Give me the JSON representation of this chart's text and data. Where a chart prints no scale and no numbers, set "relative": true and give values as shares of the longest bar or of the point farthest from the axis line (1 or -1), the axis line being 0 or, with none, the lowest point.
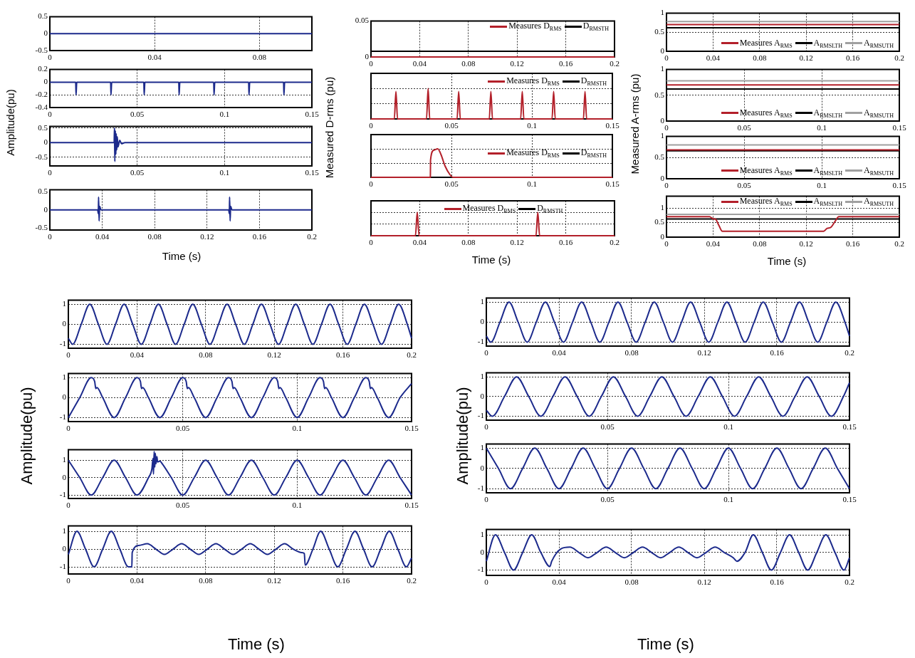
{
  "chart_data": [
    {
      "type": "line",
      "ylabel": "Amplitude(pu)",
      "xlim": [
        0,
        0.1
      ],
      "xticks": [
        0,
        0.04,
        0.08
      ],
      "ylim": [
        -0.5,
        0.5
      ],
      "yticks": [
        -0.5,
        0,
        0.5
      ],
      "grid": "x",
      "series": [
        {
          "color": "#1c2a8c",
          "x": [
            0,
            0.1
          ],
          "values": [
            0,
            0
          ]
        }
      ]
    },
    {
      "type": "line",
      "xlim": [
        0,
        0.15
      ],
      "xticks": [
        0,
        0.05,
        0.1,
        0.15
      ],
      "ylim": [
        -0.4,
        0.2
      ],
      "yticks": [
        -0.4,
        -0.2,
        0,
        0.2
      ],
      "grid": true,
      "series": [
        {
          "color": "#1c2a8c",
          "x": [
            0,
            0.0148,
            0.015,
            0.0154,
            0.0348,
            0.035,
            0.0354,
            0.0538,
            0.054,
            0.0544,
            0.0738,
            0.074,
            0.0744,
            0.0938,
            0.094,
            0.0944,
            0.1138,
            0.114,
            0.1144,
            0.1338,
            0.134,
            0.1344,
            0.15
          ],
          "values": [
            0,
            0,
            -0.2,
            0,
            0,
            -0.2,
            0,
            0,
            -0.2,
            0,
            0,
            -0.2,
            0,
            0,
            -0.2,
            0,
            0,
            -0.2,
            0,
            0,
            -0.2,
            0,
            0
          ]
        }
      ]
    },
    {
      "type": "line",
      "xlim": [
        0,
        0.15
      ],
      "xticks": [
        0,
        0.05,
        0.1,
        0.15
      ],
      "ylim": [
        -0.8,
        0.55
      ],
      "yticks": [
        -0.5,
        0,
        0.5
      ],
      "grid": true,
      "series": [
        {
          "color": "#1c2a8c",
          "x": [
            0,
            0.0368,
            0.037,
            0.0372,
            0.0375,
            0.0378,
            0.038,
            0.0383,
            0.0386,
            0.039,
            0.04,
            0.041,
            0.043,
            0.15
          ],
          "values": [
            0,
            0,
            0.5,
            -0.65,
            0.4,
            -0.4,
            0.3,
            -0.25,
            0.2,
            -0.15,
            0.08,
            -0.04,
            0,
            0
          ]
        }
      ]
    },
    {
      "type": "line",
      "xlabel": "Time (s)",
      "xlim": [
        0,
        0.2
      ],
      "xticks": [
        0,
        0.04,
        0.08,
        0.12,
        0.16,
        0.2
      ],
      "ylim": [
        -0.55,
        0.55
      ],
      "yticks": [
        -0.5,
        0,
        0.5
      ],
      "grid": "x",
      "series": [
        {
          "color": "#1c2a8c",
          "x": [
            0,
            0.0365,
            0.037,
            0.0372,
            0.0376,
            0.038,
            0.039,
            0.1365,
            0.137,
            0.1372,
            0.1376,
            0.138,
            0.139,
            0.2
          ],
          "values": [
            0,
            0,
            -0.1,
            0.35,
            -0.3,
            0.1,
            0,
            0,
            -0.1,
            0.35,
            -0.3,
            0.1,
            0,
            0
          ]
        }
      ]
    },
    {
      "type": "line",
      "ylabel": "Measured D-rms (pu)",
      "xlim": [
        0,
        0.2
      ],
      "xticks": [
        0,
        0.04,
        0.08,
        0.12,
        0.16,
        0.2
      ],
      "ylim": [
        0,
        0.05
      ],
      "yticks": [
        0,
        0.05
      ],
      "grid": "x",
      "legend": "top right",
      "series": [
        {
          "name": "Measures D$_{RMS}$",
          "color": "#b3202a",
          "x": [
            0,
            0.2
          ],
          "values": [
            0,
            0
          ]
        },
        {
          "name": "D$_{RMSTH}$",
          "color": "#000000",
          "x": [
            0,
            0.2
          ],
          "values": [
            0.008,
            0.008
          ]
        }
      ]
    },
    {
      "type": "line",
      "relative": true,
      "tick_labels": "x",
      "xlim": [
        0,
        0.15
      ],
      "xticks": [
        0,
        0.05,
        0.1,
        0.15
      ],
      "grid": true,
      "legend": "top right",
      "series": [
        {
          "name": "Measures D$_{RMS}$",
          "color": "#b3202a",
          "x": [
            0,
            0.0145,
            0.0155,
            0.0165,
            0.0345,
            0.0355,
            0.0365,
            0.0535,
            0.0545,
            0.0555,
            0.0735,
            0.0745,
            0.0755,
            0.093,
            0.094,
            0.095,
            0.1125,
            0.1135,
            0.1145,
            0.132,
            0.133,
            0.134,
            0.15
          ],
          "values": [
            0,
            0,
            0.9,
            0,
            0,
            1,
            0,
            0,
            0.9,
            0,
            0,
            0.9,
            0,
            0,
            0.9,
            0,
            0,
            0.9,
            0,
            0,
            0.9,
            0,
            0
          ]
        },
        {
          "name": "D$_{RMSTH}$",
          "color": "#000000",
          "x": [
            0,
            0.15
          ],
          "values": [
            0,
            0
          ]
        }
      ]
    },
    {
      "type": "line",
      "relative": true,
      "tick_labels": "x",
      "xlim": [
        0,
        0.15
      ],
      "xticks": [
        0,
        0.05,
        0.1,
        0.15
      ],
      "grid": true,
      "legend": "right",
      "series": [
        {
          "name": "Measures D$_{RMS}$",
          "color": "#b3202a",
          "x": [
            0,
            0.0369,
            0.037,
            0.039,
            0.0415,
            0.0435,
            0.046,
            0.049,
            0.051,
            0.15
          ],
          "values": [
            0,
            0,
            0.6,
            0.95,
            1,
            0.8,
            0.4,
            0.1,
            0,
            0
          ]
        },
        {
          "name": "D$_{RMSTH}$",
          "color": "#000000",
          "x": [
            0,
            0.15
          ],
          "values": [
            0,
            0
          ]
        }
      ]
    },
    {
      "type": "line",
      "relative": true,
      "tick_labels": "x",
      "xlabel": "Time (s)",
      "xlim": [
        0,
        0.2
      ],
      "xticks": [
        0,
        0.04,
        0.08,
        0.12,
        0.16,
        0.2
      ],
      "grid": true,
      "legend": "top",
      "series": [
        {
          "name": "Measures D$_{RMS}$",
          "color": "#b3202a",
          "x": [
            0,
            0.0365,
            0.038,
            0.0395,
            0.1355,
            0.137,
            0.1385,
            0.2
          ],
          "values": [
            0,
            0,
            1,
            0,
            0,
            1,
            0,
            0
          ]
        },
        {
          "name": "D$_{RMSTH}$",
          "color": "#000000",
          "x": [
            0,
            0.2
          ],
          "values": [
            0,
            0
          ]
        }
      ]
    },
    {
      "type": "line",
      "ylabel": "Measured A-rms (pu)",
      "xlim": [
        0,
        0.2
      ],
      "xticks": [
        0,
        0.04,
        0.08,
        0.12,
        0.16,
        0.2
      ],
      "ylim": [
        0,
        1
      ],
      "yticks": [
        0,
        0.5,
        1
      ],
      "grid": true,
      "legend": "bottom right",
      "series": [
        {
          "name": "Measures A$_{RMS}$",
          "color": "#b3202a",
          "x": [
            0,
            0.2
          ],
          "values": [
            0.7,
            0.7
          ]
        },
        {
          "name": "A$_{RMSLTH}$",
          "color": "#000000",
          "x": [
            0,
            0.2
          ],
          "values": [
            0.62,
            0.62
          ]
        },
        {
          "name": "A$_{RMSUTH}$",
          "color": "#a0a0a0",
          "x": [
            0,
            0.2
          ],
          "values": [
            0.78,
            0.78
          ]
        }
      ]
    },
    {
      "type": "line",
      "xlim": [
        0,
        0.15
      ],
      "xticks": [
        0,
        0.05,
        0.1,
        0.15
      ],
      "ylim": [
        0,
        1
      ],
      "yticks": [
        0,
        0.5,
        1
      ],
      "grid": true,
      "legend": "bottom right",
      "series": [
        {
          "name": "Measures A$_{RMS}$",
          "color": "#b3202a",
          "x": [
            0,
            0.15
          ],
          "values": [
            0.7,
            0.7
          ]
        },
        {
          "name": "A$_{RMSLTH}$",
          "color": "#000000",
          "x": [
            0,
            0.15
          ],
          "values": [
            0.62,
            0.62
          ]
        },
        {
          "name": "A$_{RMSUTH}$",
          "color": "#a0a0a0",
          "x": [
            0,
            0.15
          ],
          "values": [
            0.78,
            0.78
          ]
        }
      ]
    },
    {
      "type": "line",
      "xlim": [
        0,
        0.15
      ],
      "xticks": [
        0,
        0.05,
        0.1,
        0.15
      ],
      "ylim": [
        0,
        1
      ],
      "yticks": [
        0,
        0.5,
        1
      ],
      "grid": true,
      "legend": "bottom right",
      "series": [
        {
          "name": "Measures A$_{RMS}$",
          "color": "#b3202a",
          "x": [
            0,
            0.15
          ],
          "values": [
            0.68,
            0.68
          ]
        },
        {
          "name": "A$_{RMSLTH}$",
          "color": "#000000",
          "x": [
            0,
            0.15
          ],
          "values": [
            0.66,
            0.66
          ]
        },
        {
          "name": "A$_{RMSUTH}$",
          "color": "#a0a0a0",
          "x": [
            0,
            0.15
          ],
          "values": [
            0.8,
            0.8
          ]
        }
      ]
    },
    {
      "type": "line",
      "xlabel": "Time (s)",
      "xlim": [
        0,
        0.2
      ],
      "xticks": [
        0,
        0.04,
        0.08,
        0.12,
        0.16,
        0.2
      ],
      "ylim": [
        0,
        1.4
      ],
      "yticks": [
        0,
        0.5,
        1
      ],
      "grid": true,
      "legend": "top right",
      "series": [
        {
          "name": "Measures A$_{RMS}$",
          "color": "#b3202a",
          "x": [
            0,
            0.037,
            0.04,
            0.042,
            0.045,
            0.048,
            0.135,
            0.138,
            0.141,
            0.145,
            0.148,
            0.2
          ],
          "values": [
            0.7,
            0.7,
            0.63,
            0.62,
            0.4,
            0.2,
            0.2,
            0.3,
            0.33,
            0.55,
            0.7,
            0.7
          ]
        },
        {
          "name": "A$_{RMSLTH}$",
          "color": "#000000",
          "x": [
            0,
            0.2
          ],
          "values": [
            0.62,
            0.62
          ]
        },
        {
          "name": "A$_{RMSUTH}$",
          "color": "#a0a0a0",
          "x": [
            0,
            0.2
          ],
          "values": [
            0.78,
            0.78
          ]
        }
      ]
    },
    {
      "type": "line",
      "ylabel": "Amplitude(pu)",
      "xlim": [
        0,
        0.2
      ],
      "xticks": [
        0,
        0.04,
        0.08,
        0.12,
        0.16,
        0.2
      ],
      "ylim": [
        -1.2,
        1.2
      ],
      "yticks": [
        -1,
        0,
        1
      ],
      "grid": true,
      "series": [
        {
          "color": "#1c2a8c",
          "x": [
            0,
            0.0025,
            0.0075,
            0.0125,
            0.0175,
            0.0225,
            0.0275,
            0.0325,
            0.0375,
            0.0425,
            0.0475,
            0.0525,
            0.0575,
            0.0625,
            0.0675,
            0.0725,
            0.0775,
            0.0825,
            0.0875,
            0.0925,
            0.0975,
            0.1025,
            0.1075,
            0.1125,
            0.1175,
            0.1225,
            0.1275,
            0.1325,
            0.1375,
            0.1425,
            0.1475,
            0.1525,
            0.1575,
            0.1625,
            0.1675,
            0.1725,
            0.1775,
            0.1825,
            0.1875,
            0.1925,
            0.1975,
            0.2
          ],
          "values": [
            -0.7,
            -1,
            0,
            1,
            0,
            -1,
            0,
            1,
            0,
            -1,
            0,
            1,
            0,
            -1,
            0,
            1,
            0,
            -1,
            0,
            1,
            0,
            -1,
            0,
            1,
            0,
            -1,
            0,
            1,
            0,
            -1,
            0,
            1,
            0,
            -1,
            0,
            1,
            0,
            -1,
            0,
            1,
            0,
            -0.7
          ]
        }
      ]
    },
    {
      "type": "line",
      "xlim": [
        0,
        0.15
      ],
      "xticks": [
        0,
        0.05,
        0.1,
        0.15
      ],
      "ylim": [
        -1.2,
        1.2
      ],
      "yticks": [
        -1,
        0,
        1
      ],
      "grid": true,
      "series": [
        {
          "color": "#1c2a8c",
          "x": [
            0,
            0.005,
            0.01,
            0.0115,
            0.012,
            0.0125,
            0.015,
            0.02,
            0.025,
            0.03,
            0.0315,
            0.032,
            0.0325,
            0.035,
            0.04,
            0.045,
            0.05,
            0.0515,
            0.052,
            0.0525,
            0.055,
            0.06,
            0.065,
            0.07,
            0.0715,
            0.072,
            0.0725,
            0.075,
            0.08,
            0.085,
            0.09,
            0.0915,
            0.092,
            0.0925,
            0.095,
            0.1,
            0.105,
            0.11,
            0.1115,
            0.112,
            0.1125,
            0.115,
            0.12,
            0.125,
            0.13,
            0.1315,
            0.132,
            0.1325,
            0.135,
            0.14,
            0.145,
            0.15
          ],
          "values": [
            -1,
            0,
            1,
            0.8,
            0.45,
            0.5,
            0,
            -1,
            0,
            1,
            0.8,
            0.45,
            0.5,
            0,
            -1,
            0,
            1,
            0.8,
            0.45,
            0.5,
            0,
            -1,
            0,
            1,
            0.8,
            0.45,
            0.5,
            0,
            -1,
            0,
            1,
            0.8,
            0.45,
            0.5,
            0,
            -1,
            0,
            1,
            0.8,
            0.45,
            0.5,
            0,
            -1,
            0,
            1,
            0.8,
            0.45,
            0.5,
            0,
            -1,
            0,
            0.7
          ]
        }
      ]
    },
    {
      "type": "line",
      "xlim": [
        0,
        0.15
      ],
      "xticks": [
        0,
        0.05,
        0.1,
        0.15
      ],
      "ylim": [
        -1.2,
        1.6
      ],
      "yticks": [
        -1,
        0,
        1
      ],
      "grid": true,
      "series": [
        {
          "color": "#1c2a8c",
          "x": [
            0,
            0.005,
            0.01,
            0.015,
            0.02,
            0.025,
            0.03,
            0.035,
            0.0365,
            0.037,
            0.0372,
            0.0375,
            0.0378,
            0.038,
            0.0383,
            0.0387,
            0.039,
            0.04,
            0.041,
            0.045,
            0.05,
            0.055,
            0.06,
            0.065,
            0.07,
            0.075,
            0.08,
            0.085,
            0.09,
            0.095,
            0.1,
            0.105,
            0.11,
            0.115,
            0.12,
            0.125,
            0.13,
            0.135,
            0.14,
            0.145,
            0.15
          ],
          "values": [
            1,
            0,
            -1,
            0,
            1,
            0,
            -1,
            0,
            0.5,
            1.1,
            0.2,
            1.5,
            0.6,
            1.4,
            0.8,
            1.2,
            0.9,
            0.95,
            0.8,
            0,
            -1,
            0,
            1,
            0,
            -1,
            0,
            1,
            0,
            -1,
            0,
            1,
            0,
            -1,
            0,
            1,
            0,
            -1,
            0,
            1,
            0,
            -1
          ]
        }
      ]
    },
    {
      "type": "line",
      "xlabel": "Time (s)",
      "xlim": [
        0,
        0.2
      ],
      "xticks": [
        0,
        0.04,
        0.08,
        0.12,
        0.16,
        0.2
      ],
      "ylim": [
        -1.4,
        1.3
      ],
      "yticks": [
        -1,
        0,
        1
      ],
      "grid": true,
      "series": [
        {
          "color": "#1c2a8c",
          "x": [
            0,
            0.005,
            0.01,
            0.015,
            0.02,
            0.025,
            0.03,
            0.035,
            0.037,
            0.0372,
            0.041,
            0.046,
            0.051,
            0.056,
            0.061,
            0.066,
            0.071,
            0.076,
            0.081,
            0.086,
            0.091,
            0.096,
            0.101,
            0.106,
            0.111,
            0.116,
            0.121,
            0.126,
            0.131,
            0.136,
            0.1375,
            0.138,
            0.1425,
            0.147,
            0.152,
            0.157,
            0.162,
            0.167,
            0.172,
            0.177,
            0.182,
            0.187,
            0.192,
            0.197,
            0.2
          ],
          "values": [
            -0.3,
            1,
            0,
            -1,
            0,
            1,
            0,
            -1,
            -1,
            -0.2,
            0.2,
            0.3,
            0,
            -0.3,
            0,
            0.3,
            0,
            -0.3,
            0,
            0.3,
            0,
            -0.3,
            0,
            0.3,
            0,
            -0.3,
            0,
            0.3,
            0,
            -0.2,
            -0.25,
            -0.9,
            0,
            1,
            0,
            -1,
            0,
            1,
            0,
            -1,
            0,
            1,
            0,
            -1,
            -0.5
          ]
        }
      ]
    },
    {
      "type": "line",
      "ylabel": "Amplitude(pu)",
      "xlim": [
        0,
        0.2
      ],
      "xticks": [
        0,
        0.04,
        0.08,
        0.12,
        0.16,
        0.2
      ],
      "ylim": [
        -1.2,
        1.2
      ],
      "yticks": [
        -1,
        0,
        1
      ],
      "grid": true,
      "series": [
        {
          "color": "#1c2a8c",
          "x": [
            0,
            0.0025,
            0.0075,
            0.0125,
            0.0175,
            0.0225,
            0.0275,
            0.0325,
            0.0375,
            0.0425,
            0.0475,
            0.0525,
            0.0575,
            0.0625,
            0.0675,
            0.0725,
            0.0775,
            0.0825,
            0.0875,
            0.0925,
            0.0975,
            0.1025,
            0.1075,
            0.1125,
            0.1175,
            0.1225,
            0.1275,
            0.1325,
            0.1375,
            0.1425,
            0.1475,
            0.1525,
            0.1575,
            0.1625,
            0.1675,
            0.1725,
            0.1775,
            0.1825,
            0.1875,
            0.1925,
            0.1975,
            0.2
          ],
          "values": [
            -0.7,
            -1,
            0,
            1,
            0,
            -1,
            0,
            1,
            0,
            -1,
            0,
            1,
            0,
            -1,
            0,
            1,
            0,
            -1,
            0,
            1,
            0,
            -1,
            0,
            1,
            0,
            -1,
            0,
            1,
            0,
            -1,
            0,
            1,
            0,
            -1,
            0,
            1,
            0,
            -1,
            0,
            1,
            0,
            -0.7
          ]
        }
      ]
    },
    {
      "type": "line",
      "xlim": [
        0,
        0.15
      ],
      "xticks": [
        0,
        0.05,
        0.1,
        0.15
      ],
      "ylim": [
        -1.2,
        1.2
      ],
      "yticks": [
        -1,
        0,
        1
      ],
      "grid": true,
      "series": [
        {
          "color": "#1c2a8c",
          "x": [
            0,
            0.0025,
            0.0075,
            0.0125,
            0.0175,
            0.0225,
            0.0275,
            0.0325,
            0.0375,
            0.0425,
            0.0475,
            0.0525,
            0.0575,
            0.0625,
            0.0675,
            0.0725,
            0.0775,
            0.0825,
            0.0875,
            0.0925,
            0.0975,
            0.1025,
            0.1075,
            0.1125,
            0.1175,
            0.1225,
            0.1275,
            0.1325,
            0.1375,
            0.1425,
            0.1475,
            0.15
          ],
          "values": [
            -0.7,
            -1,
            0,
            1,
            0,
            -1,
            0,
            1,
            0,
            -1,
            0,
            1,
            0,
            -1,
            0,
            1,
            0,
            -1,
            0,
            1,
            0,
            -1,
            0,
            1,
            0,
            -1,
            0,
            1,
            0,
            -1,
            0,
            0.7
          ]
        }
      ]
    },
    {
      "type": "line",
      "xlim": [
        0,
        0.15
      ],
      "xticks": [
        0,
        0.05,
        0.1,
        0.15
      ],
      "ylim": [
        -1.2,
        1.2
      ],
      "yticks": [
        -1,
        0,
        1
      ],
      "grid": true,
      "series": [
        {
          "color": "#1c2a8c",
          "x": [
            0,
            0.005,
            0.01,
            0.015,
            0.02,
            0.025,
            0.03,
            0.035,
            0.04,
            0.045,
            0.05,
            0.055,
            0.06,
            0.065,
            0.07,
            0.075,
            0.08,
            0.085,
            0.09,
            0.095,
            0.1,
            0.105,
            0.11,
            0.115,
            0.12,
            0.125,
            0.13,
            0.135,
            0.14,
            0.145,
            0.15
          ],
          "values": [
            1,
            0,
            -1,
            0,
            1,
            0,
            -1,
            0,
            1,
            0,
            -1,
            0,
            1,
            0,
            -1,
            0,
            1,
            0,
            -1,
            0,
            1,
            0,
            -1,
            0,
            1,
            0,
            -1,
            0,
            1,
            0,
            -1
          ]
        }
      ]
    },
    {
      "type": "line",
      "xlabel": "Time (s)",
      "xlim": [
        0,
        0.2
      ],
      "xticks": [
        0,
        0.04,
        0.08,
        0.12,
        0.16,
        0.2
      ],
      "ylim": [
        -1.3,
        1.3
      ],
      "yticks": [
        -1,
        0,
        1
      ],
      "grid": true,
      "series": [
        {
          "color": "#1c2a8c",
          "x": [
            0,
            0.005,
            0.01,
            0.015,
            0.02,
            0.025,
            0.03,
            0.035,
            0.036,
            0.041,
            0.046,
            0.051,
            0.056,
            0.061,
            0.066,
            0.071,
            0.076,
            0.081,
            0.086,
            0.091,
            0.096,
            0.101,
            0.106,
            0.111,
            0.116,
            0.121,
            0.126,
            0.131,
            0.136,
            0.138,
            0.1425,
            0.147,
            0.152,
            0.157,
            0.162,
            0.167,
            0.172,
            0.177,
            0.182,
            0.187,
            0.192,
            0.197,
            0.2
          ],
          "values": [
            -0.5,
            1,
            0,
            -1,
            0,
            1,
            0,
            -0.8,
            -0.5,
            0.2,
            0.3,
            0,
            -0.3,
            0,
            0.3,
            0,
            -0.3,
            0,
            0.3,
            0,
            -0.3,
            0,
            0.3,
            0,
            -0.3,
            0,
            0.3,
            0,
            -0.3,
            -0.5,
            0,
            1,
            0,
            -1,
            0,
            1,
            0,
            -1,
            0,
            1,
            0,
            -1,
            -0.3
          ]
        }
      ]
    }
  ]
}
